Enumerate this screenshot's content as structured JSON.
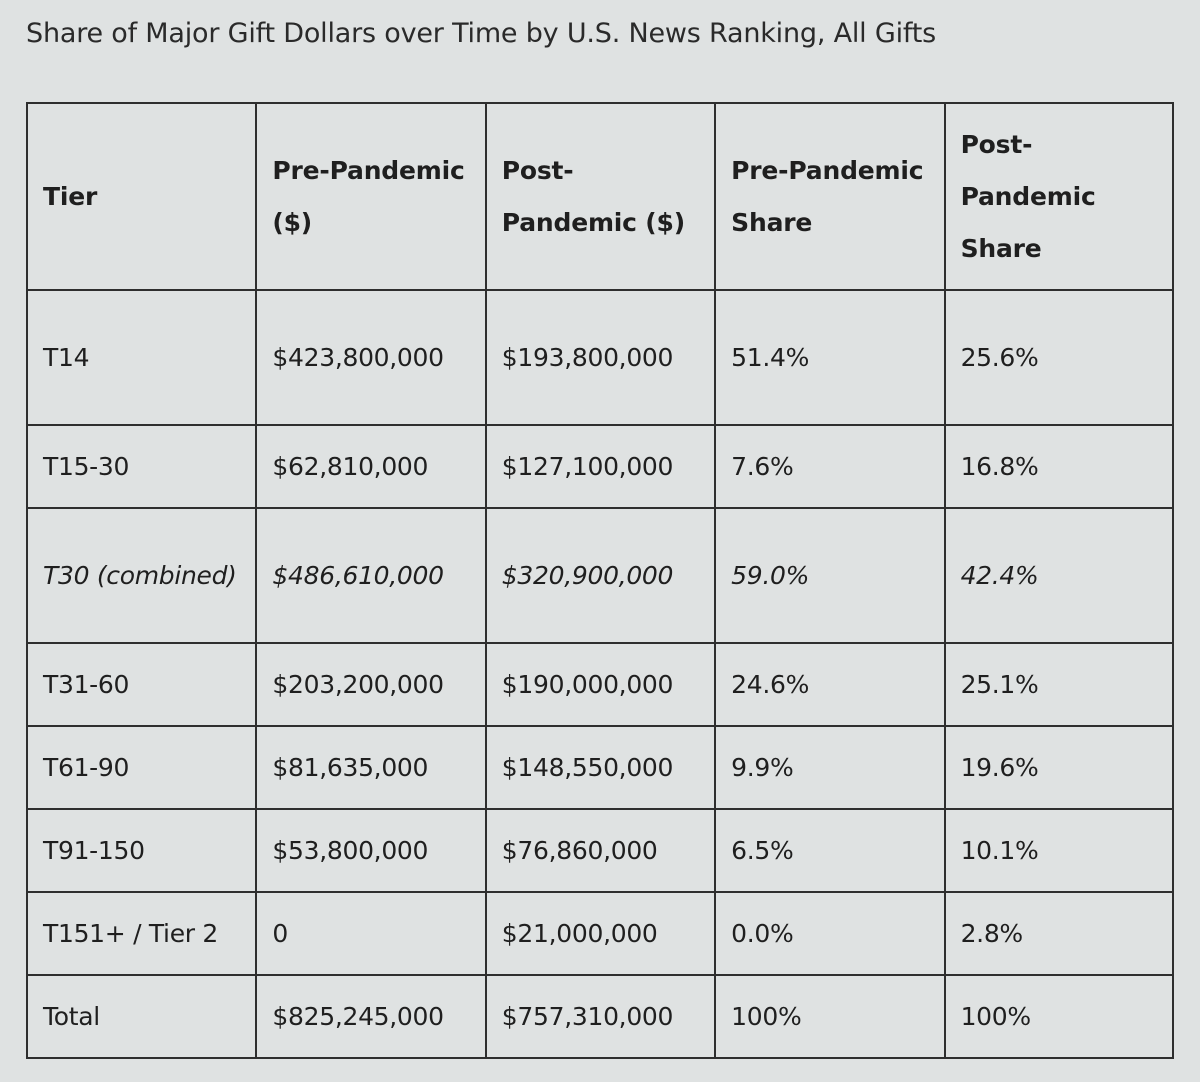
{
  "title": "Share of Major Gift Dollars over Time by U.S. News Ranking, All Gifts",
  "headers": {
    "tier": "Tier",
    "pre_dollars": "Pre-Pandemic ($)",
    "post_dollars": "Post-Pandemic ($)",
    "pre_share": "Pre-Pandemic Share",
    "post_share": "Post-Pandemic Share"
  },
  "rows": [
    {
      "tier": "T14",
      "pre": "$423,800,000",
      "post": "$193,800,000",
      "pre_share": "51.4%",
      "post_share": "25.6%"
    },
    {
      "tier": "T15-30",
      "pre": "$62,810,000",
      "post": "$127,100,000",
      "pre_share": "7.6%",
      "post_share": "16.8%"
    },
    {
      "tier": "T30 (combined)",
      "pre": "$486,610,000",
      "post": "$320,900,000",
      "pre_share": "59.0%",
      "post_share": "42.4%"
    },
    {
      "tier": "T31-60",
      "pre": "$203,200,000",
      "post": "$190,000,000",
      "pre_share": "24.6%",
      "post_share": "25.1%"
    },
    {
      "tier": "T61-90",
      "pre": "$81,635,000",
      "post": "$148,550,000",
      "pre_share": "9.9%",
      "post_share": "19.6%"
    },
    {
      "tier": "T91-150",
      "pre": "$53,800,000",
      "post": "$76,860,000",
      "pre_share": "6.5%",
      "post_share": "10.1%"
    },
    {
      "tier": "T151+ / Tier 2",
      "pre": "0",
      "post": "$21,000,000",
      "pre_share": "0.0%",
      "post_share": "2.8%"
    },
    {
      "tier": "Total",
      "pre": "$825,245,000",
      "post": "$757,310,000",
      "pre_share": "100%",
      "post_share": "100%"
    }
  ]
}
